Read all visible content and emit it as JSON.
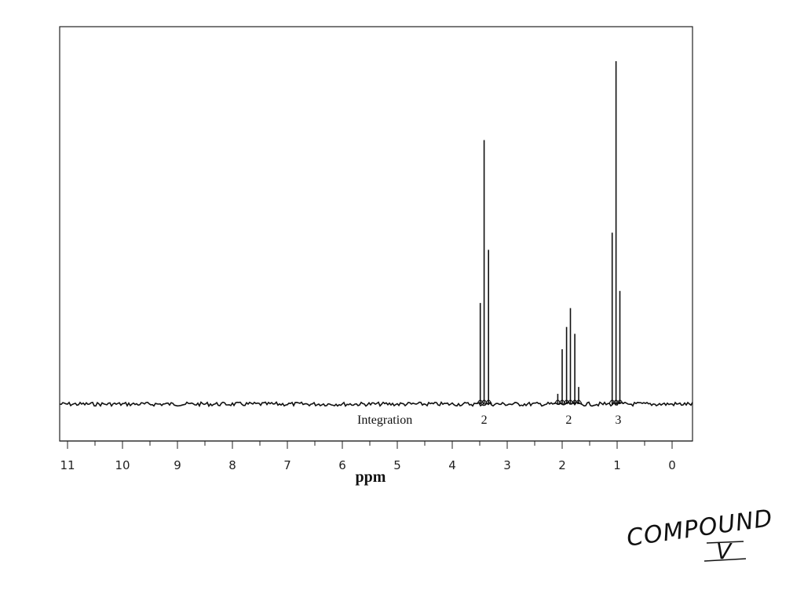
{
  "chart_data": {
    "type": "line",
    "xlabel": "ppm",
    "xlim": [
      11,
      0
    ],
    "x_reversed": true,
    "x_ticks": [
      "11",
      "10",
      "9",
      "8",
      "7",
      "6",
      "5",
      "4",
      "3",
      "2",
      "1",
      "0"
    ],
    "ylim": [
      0,
      1.0
    ],
    "y_axis_labels": false,
    "grid": false,
    "peaks": [
      {
        "ppm": 3.49,
        "height": 0.295
      },
      {
        "ppm": 3.42,
        "height": 0.77
      },
      {
        "ppm": 3.34,
        "height": 0.45
      },
      {
        "ppm": 2.08,
        "height": 0.03
      },
      {
        "ppm": 2.0,
        "height": 0.16
      },
      {
        "ppm": 1.92,
        "height": 0.225
      },
      {
        "ppm": 1.85,
        "height": 0.28
      },
      {
        "ppm": 1.77,
        "height": 0.205
      },
      {
        "ppm": 1.7,
        "height": 0.05
      },
      {
        "ppm": 1.09,
        "height": 0.5
      },
      {
        "ppm": 1.02,
        "height": 1.0
      },
      {
        "ppm": 0.95,
        "height": 0.33
      }
    ],
    "integration": {
      "label": "Integration",
      "values": [
        {
          "ppm": 3.42,
          "value": "2"
        },
        {
          "ppm": 1.88,
          "value": "2"
        },
        {
          "ppm": 0.98,
          "value": "3"
        }
      ]
    }
  },
  "annotation": {
    "line1": "COMPOUND",
    "line2": "V"
  }
}
